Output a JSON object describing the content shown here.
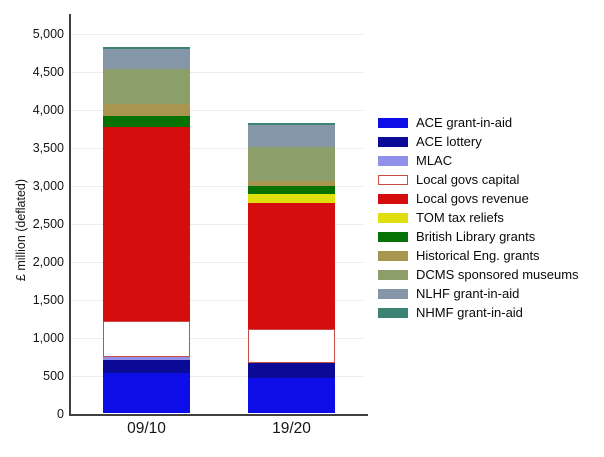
{
  "chart_data": {
    "type": "bar",
    "stacked": true,
    "title": "",
    "xlabel": "",
    "ylabel": "£ million (deflated)",
    "ylim": [
      0,
      5200
    ],
    "grid": true,
    "legend_position": "right",
    "yticks": [
      {
        "value": 0,
        "label": "0"
      },
      {
        "value": 500,
        "label": "500"
      },
      {
        "value": 1000,
        "label": "1,000"
      },
      {
        "value": 1500,
        "label": "1,500"
      },
      {
        "value": 2000,
        "label": "2,000"
      },
      {
        "value": 2500,
        "label": "2,500"
      },
      {
        "value": 3000,
        "label": "3,000"
      },
      {
        "value": 3500,
        "label": "3,500"
      },
      {
        "value": 4000,
        "label": "4,000"
      },
      {
        "value": 4500,
        "label": "4,500"
      },
      {
        "value": 5000,
        "label": "5,000"
      }
    ],
    "categories": [
      "09/10",
      "19/20"
    ],
    "series": [
      {
        "name": "ACE grant-in-aid",
        "color": "#0D0DE8",
        "values": [
          535,
          465
        ]
      },
      {
        "name": "ACE lottery",
        "color": "#0A0A96",
        "values": [
          175,
          200
        ]
      },
      {
        "name": "MLAC",
        "color": "#9090EA",
        "values": [
          30,
          0
        ]
      },
      {
        "name": "Local govs capital",
        "color": "#FFFFFF",
        "border": "#CC4B4B",
        "values": [
          480,
          445
        ]
      },
      {
        "name": "Local govs revenue",
        "color": "#D60D0D",
        "values": [
          2545,
          1665
        ]
      },
      {
        "name": "TOM tax reliefs",
        "color": "#DFDF10",
        "values": [
          0,
          115
        ]
      },
      {
        "name": "British Library grants",
        "color": "#067206",
        "values": [
          150,
          105
        ]
      },
      {
        "name": "Historical Eng. grants",
        "color": "#A8954F",
        "values": [
          155,
          65
        ]
      },
      {
        "name": "DCMS sponsored museums",
        "color": "#8C9F6B",
        "values": [
          460,
          450
        ]
      },
      {
        "name": "NLHF grant-in-aid",
        "color": "#8496A8",
        "values": [
          270,
          285
        ]
      },
      {
        "name": "NHMF grant-in-aid",
        "color": "#3B8372",
        "values": [
          25,
          30
        ]
      }
    ],
    "totals": [
      4825,
      3825
    ]
  }
}
